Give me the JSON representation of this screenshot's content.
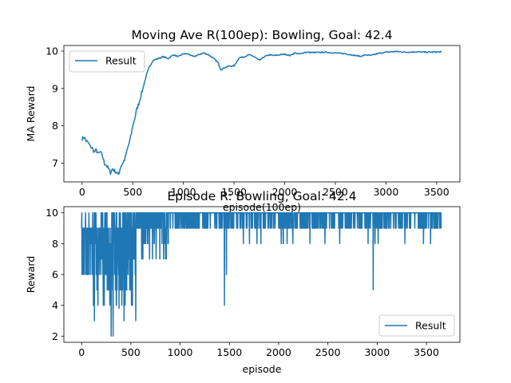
{
  "chart_data": [
    {
      "type": "line",
      "title": "Moving Ave R(100ep): Bowling, Goal: 42.4",
      "xlabel": "episode(100ep)",
      "ylabel": "MA Reward",
      "xlim": [
        -180,
        3730
      ],
      "ylim": [
        6.5,
        10.15
      ],
      "xticks": [
        0,
        500,
        1000,
        1500,
        2000,
        2500,
        3000,
        3500
      ],
      "yticks": [
        7,
        8,
        9,
        10
      ],
      "legend": "top-left",
      "grid": false,
      "color": "#1f77b4",
      "series": [
        {
          "name": "Result",
          "points": [
            [
              0,
              7.65
            ],
            [
              20,
              7.7
            ],
            [
              40,
              7.6
            ],
            [
              60,
              7.55
            ],
            [
              80,
              7.45
            ],
            [
              100,
              7.4
            ],
            [
              120,
              7.3
            ],
            [
              140,
              7.35
            ],
            [
              160,
              7.25
            ],
            [
              180,
              7.3
            ],
            [
              200,
              7.2
            ],
            [
              220,
              7.0
            ],
            [
              240,
              6.95
            ],
            [
              260,
              6.85
            ],
            [
              280,
              6.75
            ],
            [
              300,
              6.85
            ],
            [
              320,
              6.8
            ],
            [
              340,
              6.75
            ],
            [
              360,
              6.7
            ],
            [
              380,
              6.9
            ],
            [
              400,
              7.0
            ],
            [
              420,
              7.1
            ],
            [
              440,
              7.3
            ],
            [
              460,
              7.5
            ],
            [
              480,
              7.7
            ],
            [
              500,
              8.0
            ],
            [
              520,
              8.2
            ],
            [
              540,
              8.45
            ],
            [
              560,
              8.6
            ],
            [
              580,
              8.8
            ],
            [
              600,
              9.0
            ],
            [
              620,
              9.2
            ],
            [
              640,
              9.4
            ],
            [
              660,
              9.55
            ],
            [
              680,
              9.65
            ],
            [
              700,
              9.75
            ],
            [
              750,
              9.8
            ],
            [
              800,
              9.85
            ],
            [
              850,
              9.8
            ],
            [
              900,
              9.9
            ],
            [
              950,
              9.85
            ],
            [
              1000,
              9.93
            ],
            [
              1050,
              9.92
            ],
            [
              1100,
              9.85
            ],
            [
              1150,
              9.9
            ],
            [
              1200,
              9.95
            ],
            [
              1250,
              9.9
            ],
            [
              1300,
              9.8
            ],
            [
              1340,
              9.7
            ],
            [
              1370,
              9.5
            ],
            [
              1400,
              9.55
            ],
            [
              1450,
              9.6
            ],
            [
              1500,
              9.6
            ],
            [
              1550,
              9.82
            ],
            [
              1600,
              9.85
            ],
            [
              1650,
              9.9
            ],
            [
              1700,
              9.85
            ],
            [
              1750,
              9.75
            ],
            [
              1800,
              9.85
            ],
            [
              1850,
              9.9
            ],
            [
              1900,
              9.88
            ],
            [
              1950,
              9.9
            ],
            [
              2000,
              9.92
            ],
            [
              2050,
              9.88
            ],
            [
              2100,
              9.95
            ],
            [
              2150,
              9.92
            ],
            [
              2200,
              9.97
            ],
            [
              2300,
              9.96
            ],
            [
              2400,
              9.97
            ],
            [
              2500,
              9.95
            ],
            [
              2600,
              9.93
            ],
            [
              2700,
              9.88
            ],
            [
              2750,
              9.86
            ],
            [
              2800,
              9.9
            ],
            [
              2850,
              9.88
            ],
            [
              2900,
              9.92
            ],
            [
              2950,
              9.95
            ],
            [
              3000,
              9.97
            ],
            [
              3100,
              9.99
            ],
            [
              3200,
              9.97
            ],
            [
              3300,
              9.98
            ],
            [
              3400,
              9.97
            ],
            [
              3550,
              9.98
            ]
          ]
        }
      ]
    },
    {
      "type": "line",
      "title": "Episode R: Bowling, Goal: 42.4",
      "xlabel": "episode",
      "ylabel": "Reward",
      "xlim": [
        -180,
        3840
      ],
      "ylim": [
        1.6,
        10.4
      ],
      "xticks": [
        0,
        500,
        1000,
        1500,
        2000,
        2500,
        3000,
        3500
      ],
      "yticks": [
        2,
        4,
        6,
        8,
        10
      ],
      "legend": "bottom-right",
      "grid": false,
      "color": "#1f77b4",
      "x_max": 3650,
      "series": [
        {
          "name": "Result"
        }
      ]
    }
  ]
}
